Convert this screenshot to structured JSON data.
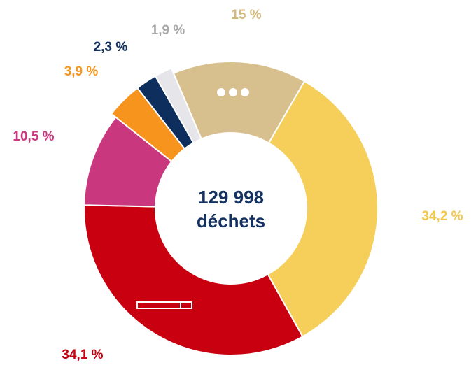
{
  "chart_data": {
    "type": "donut",
    "center_text": [
      "129 998",
      "déchets"
    ],
    "categories": [
      null,
      null,
      null,
      null,
      null,
      null,
      null
    ],
    "values": [
      34.2,
      34.1,
      10.5,
      3.9,
      2.3,
      1.9,
      15
    ],
    "value_labels": [
      "34,2 %",
      "34,1 %",
      "10,5 %",
      "3,9 %",
      "2,3 %",
      "1,9 %",
      "15 %"
    ],
    "colors": [
      "#f5cf5a",
      "#c8000f",
      "#c9387f",
      "#f7941d",
      "#0e2f5e",
      "#e6e6ea",
      "#d8c08e"
    ],
    "label_colors": [
      "#f2c84b",
      "#c8000f",
      "#c9387f",
      "#f7941d",
      "#0e2f5e",
      "#a8a8a8",
      "#d4b97f"
    ]
  }
}
